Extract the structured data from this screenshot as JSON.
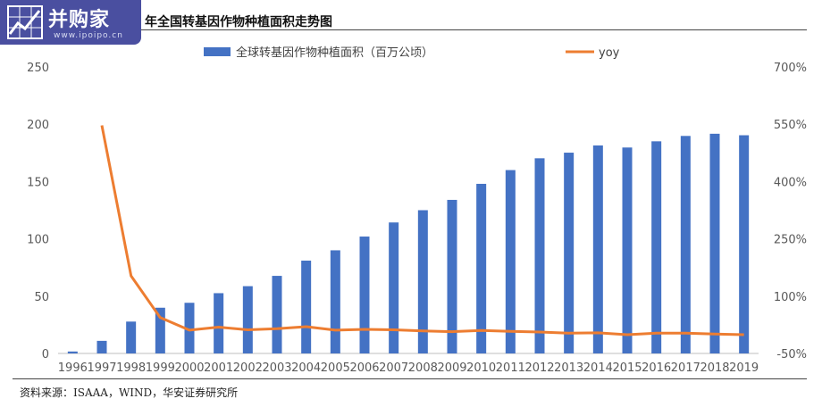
{
  "header": {
    "logo_text": "并购家",
    "logo_url": "www.ipoipo.cn",
    "title": "年全国转基因作物种植面积走势图"
  },
  "footer": {
    "source": "资料来源：ISAAA，WIND，华安证券研究所"
  },
  "colors": {
    "bar": "#4472c4",
    "line": "#ed7d31",
    "logo_bg": "#4a4fa0"
  },
  "chart_data": {
    "type": "bar",
    "title": "",
    "xlabel": "",
    "ylabel": "",
    "categories": [
      "1996",
      "1997",
      "1998",
      "1999",
      "2000",
      "2001",
      "2002",
      "2003",
      "2004",
      "2005",
      "2006",
      "2007",
      "2008",
      "2009",
      "2010",
      "2011",
      "2012",
      "2013",
      "2014",
      "2015",
      "2016",
      "2017",
      "2018",
      "2019"
    ],
    "series": [
      {
        "name": "全球转基因作物种植面积（百万公顷）",
        "type": "bar",
        "axis": "left",
        "values": [
          1.7,
          11,
          27.8,
          39.9,
          44.2,
          52.6,
          58.7,
          67.7,
          81,
          90,
          102,
          114.3,
          125,
          134,
          148,
          160,
          170.3,
          175.2,
          181.5,
          179.7,
          185.1,
          189.8,
          191.7,
          190.4
        ]
      },
      {
        "name": "yoy",
        "type": "line",
        "axis": "right",
        "values_percent": [
          null,
          547,
          153,
          44,
          11,
          19,
          12,
          15,
          20,
          11,
          13,
          12,
          9,
          7,
          10,
          8,
          6,
          3,
          4,
          -1,
          3,
          3,
          1,
          -1
        ]
      }
    ],
    "y_left": {
      "min": 0,
      "max": 250,
      "ticks": [
        "0",
        "50",
        "100",
        "150",
        "200",
        "250"
      ]
    },
    "y_right": {
      "min": -50,
      "max": 700,
      "ticks": [
        "-50%",
        "100%",
        "250%",
        "400%",
        "550%",
        "700%"
      ]
    },
    "legend_position": "top",
    "grid": false
  }
}
